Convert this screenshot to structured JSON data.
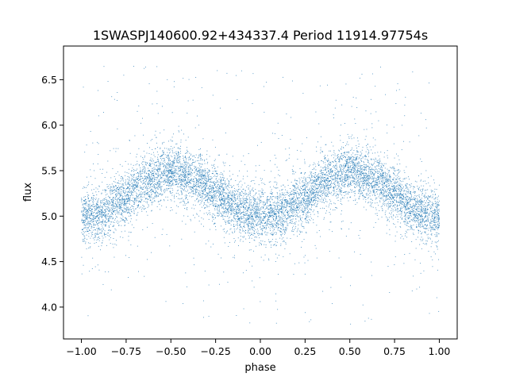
{
  "chart_data": {
    "type": "scatter",
    "title": "1SWASPJ140600.92+434337.4 Period 11914.97754s",
    "xlabel": "phase",
    "ylabel": "flux",
    "xlim": [
      -1.1,
      1.1
    ],
    "ylim": [
      3.65,
      6.87
    ],
    "x_ticks": [
      -1.0,
      -0.75,
      -0.5,
      -0.25,
      0.0,
      0.25,
      0.5,
      0.75,
      1.0
    ],
    "x_tick_labels": [
      "−1.00",
      "−0.75",
      "−0.50",
      "−0.25",
      "0.00",
      "0.25",
      "0.50",
      "0.75",
      "1.00"
    ],
    "y_ticks": [
      4.0,
      4.5,
      5.0,
      5.5,
      6.0,
      6.5
    ],
    "y_tick_labels": [
      "4.0",
      "4.5",
      "5.0",
      "5.5",
      "6.0",
      "6.5"
    ],
    "grid": false,
    "legend": "none",
    "marker_color": "#1f77b4",
    "series": [
      {
        "phase_range": [
          -1.0,
          1.0
        ],
        "model": "folded light curve, two cycles",
        "profile": [
          {
            "x": -1.0,
            "y": 4.98
          },
          {
            "x": -0.9,
            "y": 5.02
          },
          {
            "x": -0.75,
            "y": 5.2
          },
          {
            "x": -0.65,
            "y": 5.38
          },
          {
            "x": -0.5,
            "y": 5.5
          },
          {
            "x": -0.35,
            "y": 5.4
          },
          {
            "x": -0.25,
            "y": 5.25
          },
          {
            "x": -0.1,
            "y": 5.05
          },
          {
            "x": 0.0,
            "y": 5.0
          },
          {
            "x": 0.1,
            "y": 5.02
          },
          {
            "x": 0.25,
            "y": 5.2
          },
          {
            "x": 0.35,
            "y": 5.38
          },
          {
            "x": 0.5,
            "y": 5.5
          },
          {
            "x": 0.65,
            "y": 5.4
          },
          {
            "x": 0.75,
            "y": 5.25
          },
          {
            "x": 0.9,
            "y": 5.05
          },
          {
            "x": 1.0,
            "y": 4.98
          }
        ],
        "scatter_sigma": 0.14,
        "outlier_range": [
          3.8,
          6.7
        ],
        "approx_points": 9000
      }
    ]
  }
}
